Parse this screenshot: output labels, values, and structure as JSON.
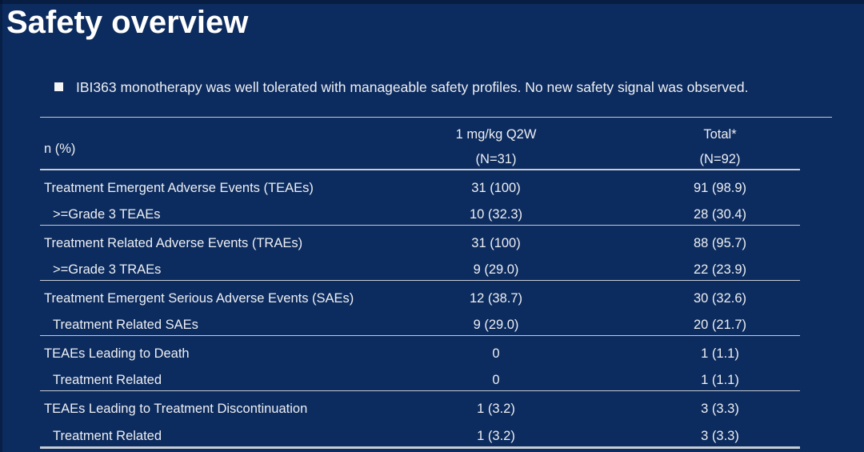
{
  "slide": {
    "title": "Safety overview",
    "bullet": "IBI363 monotherapy was well tolerated with manageable safety profiles. No new safety signal was observed."
  },
  "table": {
    "header": {
      "col1": "n (%)",
      "col2_line1": "1 mg/kg Q2W",
      "col2_line2": "(N=31)",
      "col3_line1": "Total*",
      "col3_line2": "(N=92)"
    },
    "rows": [
      {
        "label": "Treatment Emergent Adverse Events (TEAEs)",
        "indent": false,
        "q2w": "31 (100)",
        "total": "91 (98.9)",
        "divider_after": false
      },
      {
        "label": ">=Grade 3 TEAEs",
        "indent": true,
        "q2w": "10 (32.3)",
        "total": "28 (30.4)",
        "divider_after": true
      },
      {
        "label": "Treatment Related Adverse Events (TRAEs)",
        "indent": false,
        "q2w": "31 (100)",
        "total": "88 (95.7)",
        "divider_after": false
      },
      {
        "label": ">=Grade 3 TRAEs",
        "indent": true,
        "q2w": "9 (29.0)",
        "total": "22 (23.9)",
        "divider_after": true
      },
      {
        "label": "Treatment Emergent Serious Adverse Events (SAEs)",
        "indent": false,
        "q2w": "12 (38.7)",
        "total": "30 (32.6)",
        "divider_after": false
      },
      {
        "label": "Treatment Related SAEs",
        "indent": true,
        "q2w": "9 (29.0)",
        "total": "20 (21.7)",
        "divider_after": true
      },
      {
        "label": "TEAEs Leading to Death",
        "indent": false,
        "q2w": "0",
        "total": "1 (1.1)",
        "divider_after": false
      },
      {
        "label": "Treatment Related",
        "indent": true,
        "q2w": "0",
        "total": "1 (1.1)",
        "divider_after": true
      },
      {
        "label": "TEAEs Leading to Treatment Discontinuation",
        "indent": false,
        "q2w": "1 (3.2)",
        "total": "3 (3.3)",
        "divider_after": false
      },
      {
        "label": "Treatment Related",
        "indent": true,
        "q2w": "1 (3.2)",
        "total": "3 (3.3)",
        "divider_after": false
      }
    ]
  },
  "colors": {
    "background": "#0c2b5e",
    "text": "#eef0f4",
    "title": "#ffffff",
    "line": "#c6cbd4"
  }
}
